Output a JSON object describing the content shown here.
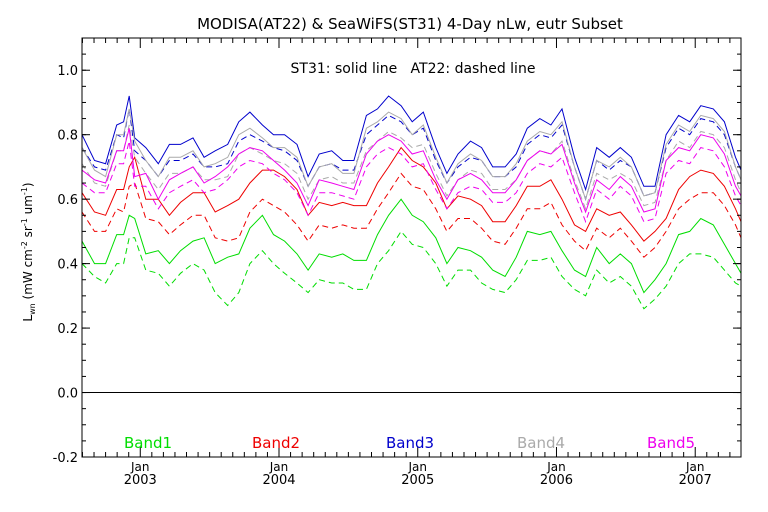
{
  "chart_data": {
    "type": "line",
    "title": "MODISA(AT22) & SeaWiFS(ST31) 4-Day nLw, eutr Subset",
    "subtitle": "ST31: solid line   AT22: dashed line",
    "ylabel": "L_wn (mW cm^-2 sr^-1 um^-1)",
    "ylabel_parts": {
      "l": "L",
      "l_sub": "wn",
      "unit_a": " (mW cm",
      "sup_a": "-2",
      "unit_b": " sr",
      "sup_b": "-1",
      "unit_c": " um",
      "sup_c": "-1",
      "unit_d": ")"
    },
    "xlabel": "",
    "xlim": [
      2002.58,
      2007.33
    ],
    "ylim": [
      -0.2,
      1.1
    ],
    "y_ticks": [
      -0.2,
      0.0,
      0.2,
      0.4,
      0.6,
      0.8,
      1.0
    ],
    "y_tick_labels": [
      "-0.2",
      "0.0",
      "0.2",
      "0.4",
      "0.6",
      "0.8",
      "1.0"
    ],
    "x_ticks": [
      {
        "value": 2003.0,
        "month": "Jan",
        "year": "2003"
      },
      {
        "value": 2004.0,
        "month": "Jan",
        "year": "2004"
      },
      {
        "value": 2005.0,
        "month": "Jan",
        "year": "2005"
      },
      {
        "value": 2006.0,
        "month": "Jan",
        "year": "2006"
      },
      {
        "value": 2007.0,
        "month": "Jan",
        "year": "2007"
      }
    ],
    "zero_line": 0.0,
    "legend_placement": "bottom",
    "legend": [
      {
        "label": "Band1",
        "color": "#00dd00"
      },
      {
        "label": "Band2",
        "color": "#ee0000"
      },
      {
        "label": "Band3",
        "color": "#0000cc"
      },
      {
        "label": "Band4",
        "color": "#aaaaaa"
      },
      {
        "label": "Band5",
        "color": "#ee00ee"
      }
    ],
    "x": [
      2002.58,
      2002.67,
      2002.75,
      2002.83,
      2002.88,
      2002.92,
      2002.96,
      2003.04,
      2003.13,
      2003.21,
      2003.29,
      2003.38,
      2003.46,
      2003.54,
      2003.63,
      2003.71,
      2003.79,
      2003.88,
      2003.96,
      2004.04,
      2004.13,
      2004.21,
      2004.29,
      2004.38,
      2004.46,
      2004.54,
      2004.63,
      2004.71,
      2004.79,
      2004.88,
      2004.96,
      2005.04,
      2005.13,
      2005.21,
      2005.29,
      2005.38,
      2005.46,
      2005.54,
      2005.63,
      2005.71,
      2005.79,
      2005.88,
      2005.96,
      2006.04,
      2006.13,
      2006.21,
      2006.29,
      2006.38,
      2006.46,
      2006.54,
      2006.63,
      2006.71,
      2006.79,
      2006.88,
      2006.96,
      2007.04,
      2007.13,
      2007.21,
      2007.29,
      2007.33
    ],
    "series": [
      {
        "band": "Band1",
        "sensor": "ST31",
        "style": "solid",
        "color": "#00dd00",
        "values": [
          0.47,
          0.4,
          0.4,
          0.49,
          0.49,
          0.55,
          0.54,
          0.43,
          0.44,
          0.4,
          0.44,
          0.47,
          0.48,
          0.4,
          0.42,
          0.43,
          0.51,
          0.55,
          0.49,
          0.47,
          0.43,
          0.38,
          0.43,
          0.42,
          0.43,
          0.41,
          0.41,
          0.49,
          0.55,
          0.6,
          0.55,
          0.53,
          0.48,
          0.4,
          0.45,
          0.44,
          0.42,
          0.38,
          0.36,
          0.42,
          0.5,
          0.49,
          0.5,
          0.44,
          0.38,
          0.36,
          0.45,
          0.4,
          0.43,
          0.4,
          0.31,
          0.35,
          0.4,
          0.49,
          0.5,
          0.54,
          0.52,
          0.46,
          0.4,
          0.37
        ]
      },
      {
        "band": "Band1",
        "sensor": "AT22",
        "style": "dashed",
        "color": "#00dd00",
        "values": [
          0.4,
          0.36,
          0.34,
          0.4,
          0.4,
          0.48,
          0.48,
          0.38,
          0.37,
          0.33,
          0.37,
          0.4,
          0.38,
          0.31,
          0.27,
          0.31,
          0.4,
          0.44,
          0.4,
          0.37,
          0.34,
          0.31,
          0.35,
          0.34,
          0.34,
          0.32,
          0.32,
          0.4,
          0.44,
          0.5,
          0.46,
          0.45,
          0.4,
          0.33,
          0.38,
          0.38,
          0.34,
          0.32,
          0.31,
          0.35,
          0.41,
          0.41,
          0.42,
          0.36,
          0.32,
          0.3,
          0.38,
          0.34,
          0.36,
          0.33,
          0.26,
          0.29,
          0.33,
          0.4,
          0.43,
          0.43,
          0.42,
          0.38,
          0.34,
          0.33
        ]
      },
      {
        "band": "Band2",
        "sensor": "ST31",
        "style": "solid",
        "color": "#ee0000",
        "values": [
          0.62,
          0.56,
          0.55,
          0.63,
          0.63,
          0.7,
          0.73,
          0.6,
          0.6,
          0.55,
          0.59,
          0.62,
          0.62,
          0.56,
          0.58,
          0.6,
          0.65,
          0.69,
          0.69,
          0.67,
          0.63,
          0.55,
          0.59,
          0.58,
          0.59,
          0.58,
          0.58,
          0.65,
          0.7,
          0.76,
          0.72,
          0.7,
          0.65,
          0.57,
          0.61,
          0.6,
          0.58,
          0.53,
          0.53,
          0.58,
          0.64,
          0.64,
          0.66,
          0.6,
          0.52,
          0.5,
          0.57,
          0.55,
          0.56,
          0.52,
          0.47,
          0.5,
          0.54,
          0.63,
          0.67,
          0.69,
          0.68,
          0.64,
          0.57,
          0.53
        ]
      },
      {
        "band": "Band2",
        "sensor": "AT22",
        "style": "dashed",
        "color": "#ee0000",
        "values": [
          0.56,
          0.5,
          0.5,
          0.57,
          0.56,
          0.64,
          0.65,
          0.54,
          0.53,
          0.49,
          0.52,
          0.55,
          0.55,
          0.48,
          0.47,
          0.48,
          0.56,
          0.6,
          0.58,
          0.56,
          0.52,
          0.47,
          0.52,
          0.51,
          0.52,
          0.51,
          0.51,
          0.57,
          0.62,
          0.68,
          0.64,
          0.63,
          0.57,
          0.5,
          0.54,
          0.54,
          0.51,
          0.47,
          0.46,
          0.51,
          0.57,
          0.57,
          0.59,
          0.52,
          0.47,
          0.44,
          0.51,
          0.48,
          0.51,
          0.47,
          0.42,
          0.45,
          0.5,
          0.57,
          0.6,
          0.62,
          0.62,
          0.58,
          0.52,
          0.48
        ]
      },
      {
        "band": "Band3",
        "sensor": "ST31",
        "style": "solid",
        "color": "#0000cc",
        "values": [
          0.8,
          0.72,
          0.71,
          0.83,
          0.84,
          0.92,
          0.79,
          0.76,
          0.71,
          0.77,
          0.77,
          0.79,
          0.73,
          0.75,
          0.77,
          0.84,
          0.87,
          0.83,
          0.8,
          0.8,
          0.77,
          0.67,
          0.74,
          0.75,
          0.72,
          0.72,
          0.86,
          0.88,
          0.92,
          0.89,
          0.84,
          0.87,
          0.76,
          0.68,
          0.74,
          0.78,
          0.76,
          0.7,
          0.7,
          0.74,
          0.82,
          0.85,
          0.83,
          0.88,
          0.73,
          0.63,
          0.76,
          0.73,
          0.76,
          0.73,
          0.64,
          0.64,
          0.8,
          0.86,
          0.84,
          0.89,
          0.88,
          0.84,
          0.73,
          0.69
        ]
      },
      {
        "band": "Band3",
        "sensor": "AT22",
        "style": "dashed",
        "color": "#0000cc",
        "values": [
          0.76,
          0.7,
          0.69,
          0.8,
          0.79,
          0.88,
          0.75,
          0.72,
          0.67,
          0.72,
          0.72,
          0.74,
          0.7,
          0.7,
          0.71,
          0.78,
          0.8,
          0.78,
          0.76,
          0.75,
          0.72,
          0.64,
          0.7,
          0.71,
          0.69,
          0.69,
          0.8,
          0.83,
          0.86,
          0.84,
          0.8,
          0.82,
          0.72,
          0.65,
          0.7,
          0.73,
          0.72,
          0.67,
          0.67,
          0.7,
          0.77,
          0.8,
          0.79,
          0.83,
          0.7,
          0.6,
          0.72,
          0.69,
          0.72,
          0.7,
          0.61,
          0.62,
          0.76,
          0.82,
          0.8,
          0.85,
          0.84,
          0.8,
          0.7,
          0.66
        ]
      },
      {
        "band": "Band4",
        "sensor": "ST31",
        "style": "solid",
        "color": "#aaaaaa",
        "values": [
          0.76,
          0.69,
          0.67,
          0.8,
          0.8,
          0.88,
          0.78,
          0.72,
          0.67,
          0.73,
          0.73,
          0.75,
          0.7,
          0.71,
          0.73,
          0.8,
          0.82,
          0.79,
          0.76,
          0.76,
          0.73,
          0.64,
          0.7,
          0.71,
          0.68,
          0.68,
          0.82,
          0.84,
          0.87,
          0.85,
          0.8,
          0.83,
          0.73,
          0.65,
          0.71,
          0.74,
          0.72,
          0.67,
          0.67,
          0.71,
          0.78,
          0.81,
          0.8,
          0.84,
          0.7,
          0.6,
          0.72,
          0.7,
          0.73,
          0.7,
          0.61,
          0.62,
          0.77,
          0.83,
          0.81,
          0.86,
          0.85,
          0.81,
          0.7,
          0.66
        ]
      },
      {
        "band": "Band4",
        "sensor": "AT22",
        "style": "dashed",
        "color": "#aaaaaa",
        "values": [
          0.71,
          0.65,
          0.64,
          0.75,
          0.75,
          0.83,
          0.73,
          0.68,
          0.63,
          0.68,
          0.68,
          0.7,
          0.66,
          0.66,
          0.67,
          0.74,
          0.76,
          0.74,
          0.72,
          0.71,
          0.68,
          0.6,
          0.66,
          0.67,
          0.65,
          0.65,
          0.75,
          0.78,
          0.81,
          0.79,
          0.76,
          0.77,
          0.68,
          0.61,
          0.66,
          0.69,
          0.68,
          0.63,
          0.63,
          0.66,
          0.72,
          0.75,
          0.74,
          0.78,
          0.66,
          0.57,
          0.68,
          0.66,
          0.68,
          0.66,
          0.58,
          0.59,
          0.72,
          0.78,
          0.76,
          0.81,
          0.8,
          0.76,
          0.66,
          0.62
        ]
      },
      {
        "band": "Band5",
        "sensor": "ST31",
        "style": "solid",
        "color": "#ee00ee",
        "values": [
          0.69,
          0.66,
          0.65,
          0.75,
          0.75,
          0.82,
          0.67,
          0.68,
          0.6,
          0.66,
          0.68,
          0.7,
          0.65,
          0.67,
          0.7,
          0.74,
          0.76,
          0.75,
          0.72,
          0.69,
          0.65,
          0.58,
          0.66,
          0.65,
          0.64,
          0.63,
          0.74,
          0.78,
          0.8,
          0.78,
          0.74,
          0.75,
          0.66,
          0.6,
          0.66,
          0.68,
          0.66,
          0.62,
          0.62,
          0.66,
          0.72,
          0.75,
          0.74,
          0.77,
          0.65,
          0.56,
          0.66,
          0.63,
          0.67,
          0.64,
          0.56,
          0.57,
          0.72,
          0.76,
          0.75,
          0.8,
          0.79,
          0.74,
          0.64,
          0.61
        ]
      },
      {
        "band": "Band5",
        "sensor": "AT22",
        "style": "dashed",
        "color": "#ee00ee",
        "values": [
          0.65,
          0.62,
          0.62,
          0.71,
          0.71,
          0.78,
          0.64,
          0.64,
          0.57,
          0.62,
          0.64,
          0.66,
          0.62,
          0.63,
          0.66,
          0.7,
          0.72,
          0.71,
          0.68,
          0.66,
          0.62,
          0.55,
          0.62,
          0.62,
          0.61,
          0.6,
          0.7,
          0.74,
          0.76,
          0.74,
          0.7,
          0.71,
          0.63,
          0.57,
          0.62,
          0.64,
          0.63,
          0.59,
          0.59,
          0.62,
          0.68,
          0.71,
          0.7,
          0.73,
          0.62,
          0.53,
          0.63,
          0.6,
          0.64,
          0.61,
          0.53,
          0.54,
          0.68,
          0.72,
          0.71,
          0.76,
          0.75,
          0.7,
          0.61,
          0.58
        ]
      }
    ]
  }
}
